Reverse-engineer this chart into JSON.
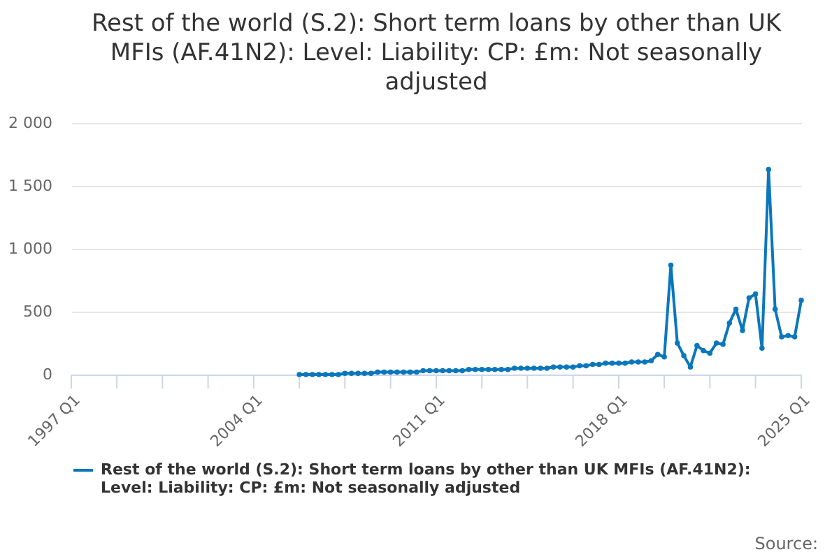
{
  "chart_data": {
    "type": "line",
    "title": "Rest of the world (S.2): Short term loans by other than UK MFIs (AF.41N2): Level: Liability: CP: £m: Not seasonally adjusted",
    "x": [
      "2005-10",
      "2006-01",
      "2006-04",
      "2006-07",
      "2006-10",
      "2007-01",
      "2007-04",
      "2007-07",
      "2007-10",
      "2008-01",
      "2008-04",
      "2008-07",
      "2008-10",
      "2009-01",
      "2009-04",
      "2009-07",
      "2009-10",
      "2010-01",
      "2010-04",
      "2010-07",
      "2010-10",
      "2011-01",
      "2011-04",
      "2011-07",
      "2011-10",
      "2012-01",
      "2012-04",
      "2012-07",
      "2012-10",
      "2013-01",
      "2013-04",
      "2013-07",
      "2013-10",
      "2014-01",
      "2014-04",
      "2014-07",
      "2014-10",
      "2015-01",
      "2015-04",
      "2015-07",
      "2015-10",
      "2016-01",
      "2016-04",
      "2016-07",
      "2016-10",
      "2017-01",
      "2017-04",
      "2017-07",
      "2017-10",
      "2018-01",
      "2018-04",
      "2018-07",
      "2018-10",
      "2019-01",
      "2019-04",
      "2019-07",
      "2019-10",
      "2020-01",
      "2020-04",
      "2020-07",
      "2020-10",
      "2021-01",
      "2021-04",
      "2021-07",
      "2021-10",
      "2022-01",
      "2022-04",
      "2022-07",
      "2022-10",
      "2023-01",
      "2023-04",
      "2023-07",
      "2023-10",
      "2024-01",
      "2024-04",
      "2024-07",
      "2024-10",
      "2025-01"
    ],
    "series": [
      {
        "name": "Rest of the world (S.2): Short term loans by other than UK MFIs (AF.41N2): Level: Liability: CP: £m: Not seasonally adjusted",
        "color": "#0a77bd",
        "values": [
          0,
          0,
          0,
          0,
          0,
          0,
          0,
          10,
          10,
          10,
          10,
          10,
          20,
          20,
          20,
          20,
          20,
          20,
          20,
          30,
          30,
          30,
          30,
          30,
          30,
          30,
          40,
          40,
          40,
          40,
          40,
          40,
          40,
          50,
          50,
          50,
          50,
          50,
          50,
          60,
          60,
          60,
          60,
          70,
          70,
          80,
          80,
          90,
          90,
          90,
          90,
          100,
          100,
          100,
          110,
          160,
          140,
          870,
          250,
          150,
          60,
          230,
          190,
          170,
          250,
          240,
          410,
          520,
          350,
          610,
          640,
          210,
          1630,
          520,
          300,
          310,
          300,
          590
        ]
      }
    ],
    "xlim": [
      "1997-01",
      "2025-01"
    ],
    "xticks": [
      {
        "value": "1997-01",
        "label": "1997 Q1"
      },
      {
        "value": "1998-10",
        "label": null
      },
      {
        "value": "2000-07",
        "label": null
      },
      {
        "value": "2002-04",
        "label": null
      },
      {
        "value": "2004-01",
        "label": "2004 Q1"
      },
      {
        "value": "2005-10",
        "label": null
      },
      {
        "value": "2007-07",
        "label": null
      },
      {
        "value": "2009-04",
        "label": null
      },
      {
        "value": "2011-01",
        "label": "2011 Q1"
      },
      {
        "value": "2012-10",
        "label": null
      },
      {
        "value": "2014-07",
        "label": null
      },
      {
        "value": "2016-04",
        "label": null
      },
      {
        "value": "2018-01",
        "label": "2018 Q1"
      },
      {
        "value": "2019-10",
        "label": null
      },
      {
        "value": "2021-07",
        "label": null
      },
      {
        "value": "2023-04",
        "label": null
      },
      {
        "value": "2025-01",
        "label": "2025 Q1"
      }
    ],
    "ylim": [
      0,
      2000
    ],
    "yticks": [
      0,
      500,
      {
        "value": 1000,
        "label": "1 000"
      },
      {
        "value": 1500,
        "label": "1 500"
      },
      {
        "value": 2000,
        "label": "2 000"
      }
    ],
    "grid": "y",
    "legend": "bottom",
    "marker": "circle",
    "line_style": "solid",
    "annotations": [
      "Source:"
    ]
  }
}
